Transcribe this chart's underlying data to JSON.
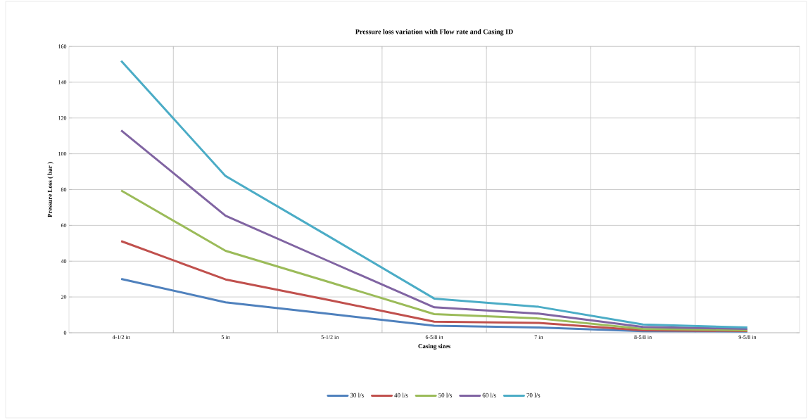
{
  "chart_data": {
    "type": "line",
    "title": "Pressure loss variation with Flow rate and Casing ID",
    "xlabel": "Casing sizes",
    "ylabel": "Pressure Loss ( bar )",
    "categories": [
      "4-1/2 in",
      "5 in",
      "5-1/2 in",
      "6-5/8 in",
      "7 in",
      "8-5/8 in",
      "9-5/8 in"
    ],
    "series": [
      {
        "name": "30 l/s",
        "color": "#4f81bd",
        "values": [
          30.1,
          17,
          10.5,
          3.9,
          2.9,
          0.9,
          0.7
        ]
      },
      {
        "name": "40 l/s",
        "color": "#c0504d",
        "values": [
          51.2,
          29.8,
          18.2,
          6.2,
          5.5,
          1.4,
          1
        ]
      },
      {
        "name": "50 l/s",
        "color": "#9bbb59",
        "values": [
          79.5,
          45.8,
          28.2,
          10.4,
          8,
          2.2,
          1.4
        ]
      },
      {
        "name": "60 l/s",
        "color": "#8064a2",
        "values": [
          113.1,
          65.4,
          39.7,
          14.2,
          10.7,
          3.2,
          2.2
        ]
      },
      {
        "name": "70 l/s",
        "color": "#4bacc6",
        "values": [
          151.9,
          87.6,
          53.5,
          19.1,
          14.5,
          4.6,
          2.9
        ]
      }
    ],
    "ylim": [
      0,
      160
    ],
    "yticks": [
      0,
      20,
      40,
      60,
      80,
      100,
      120,
      140,
      160
    ],
    "grid": true,
    "legend": "bottom",
    "marker": "none",
    "line_style": "solid"
  }
}
